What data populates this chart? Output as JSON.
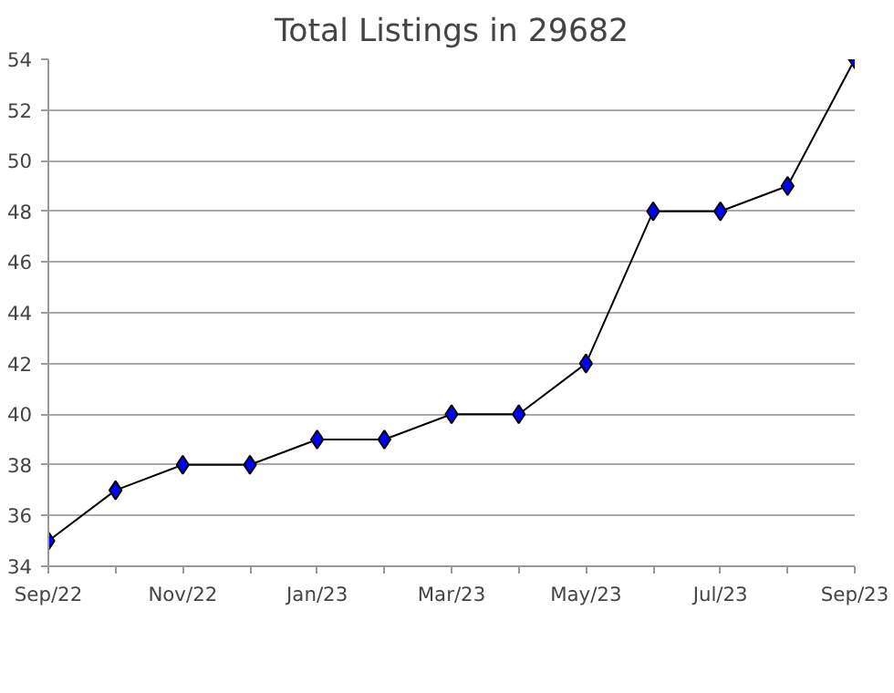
{
  "chart_data": {
    "type": "line",
    "title": "Total Listings in 29682",
    "categories": [
      "Sep/22",
      null,
      "Nov/22",
      null,
      "Jan/23",
      null,
      "Mar/23",
      null,
      "May/23",
      null,
      "Jul/23",
      null,
      "Sep/23"
    ],
    "series": [
      {
        "color": "#0000ff",
        "values": [
          35,
          37,
          38,
          38,
          39,
          39,
          40,
          40,
          42,
          48,
          48,
          49,
          54
        ]
      }
    ],
    "ylim": [
      34,
      54
    ],
    "yticks": [
      34,
      36,
      38,
      40,
      42,
      44,
      46,
      48,
      50,
      52,
      54
    ],
    "grid": "y",
    "marker": "diamond",
    "line_style": "solid"
  }
}
